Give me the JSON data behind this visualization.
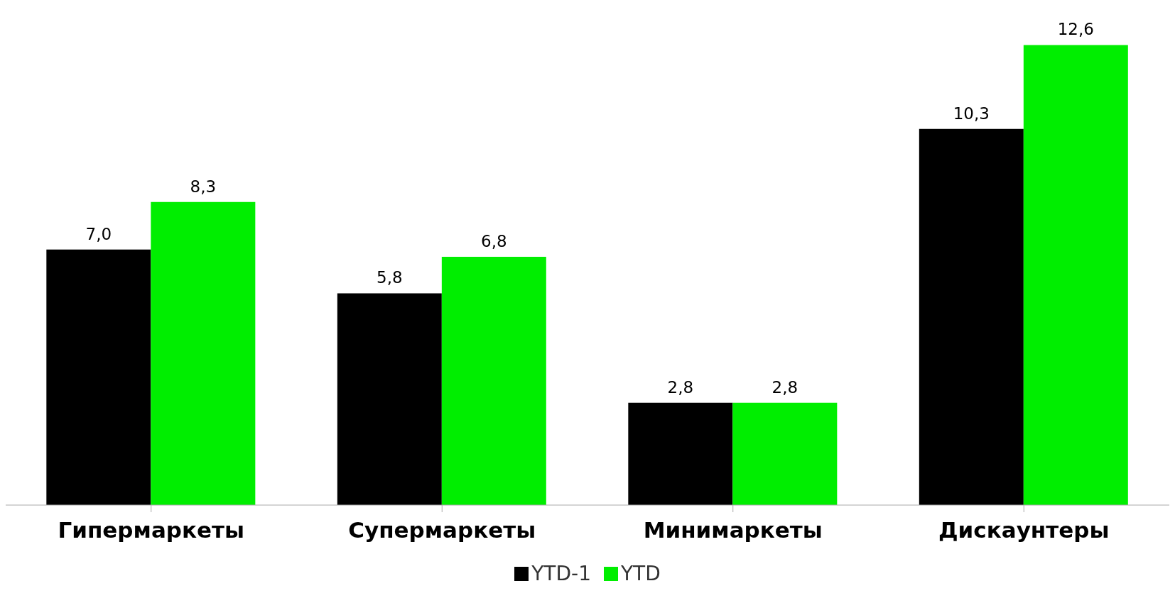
{
  "chart_data": {
    "type": "bar",
    "categories": [
      "Гипермаркеты",
      "Супермаркеты",
      "Минимаркеты",
      "Дискаунтеры"
    ],
    "series": [
      {
        "name": "YTD-1",
        "color": "#000000",
        "values": [
          7.0,
          5.8,
          2.8,
          10.3
        ],
        "value_labels": [
          "7,0",
          "5,8",
          "2,8",
          "10,3"
        ]
      },
      {
        "name": "YTD",
        "color": "#00ee00",
        "values": [
          8.3,
          6.8,
          2.8,
          12.6
        ],
        "value_labels": [
          "8,3",
          "6,8",
          "2,8",
          "12,6"
        ]
      }
    ],
    "legend": "bottom",
    "grid": false
  }
}
